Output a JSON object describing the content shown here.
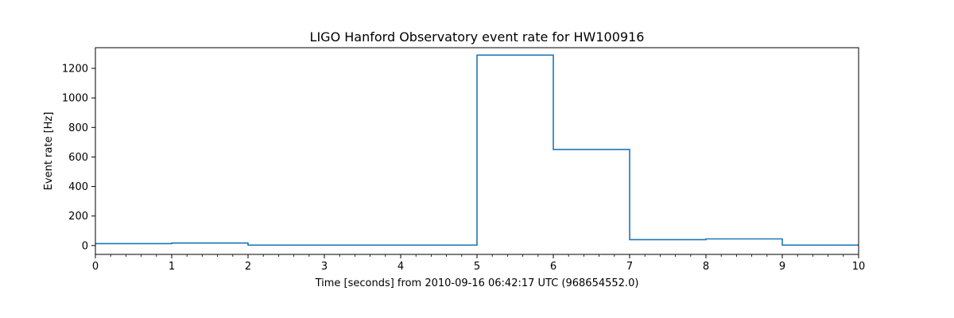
{
  "chart_data": {
    "type": "line",
    "drawstyle": "steps-post",
    "title": "LIGO Hanford Observatory event rate for HW100916",
    "xlabel": "Time [seconds] from 2010-09-16 06:42:17 UTC (968654552.0)",
    "ylabel": "Event rate [Hz]",
    "xlim": [
      0,
      10
    ],
    "ylim": [
      -60,
      1340
    ],
    "xticks": [
      0,
      1,
      2,
      3,
      4,
      5,
      6,
      7,
      8,
      9,
      10
    ],
    "yticks": [
      0,
      200,
      400,
      600,
      800,
      1000,
      1200
    ],
    "grid": false,
    "legend": "none",
    "series": [
      {
        "color": "#1f77b4",
        "x": [
          0,
          1,
          2,
          3,
          4,
          5,
          6,
          7,
          8,
          9,
          10
        ],
        "y": [
          13,
          17,
          3,
          3,
          3,
          1290,
          650,
          40,
          45,
          3,
          3
        ]
      }
    ]
  }
}
